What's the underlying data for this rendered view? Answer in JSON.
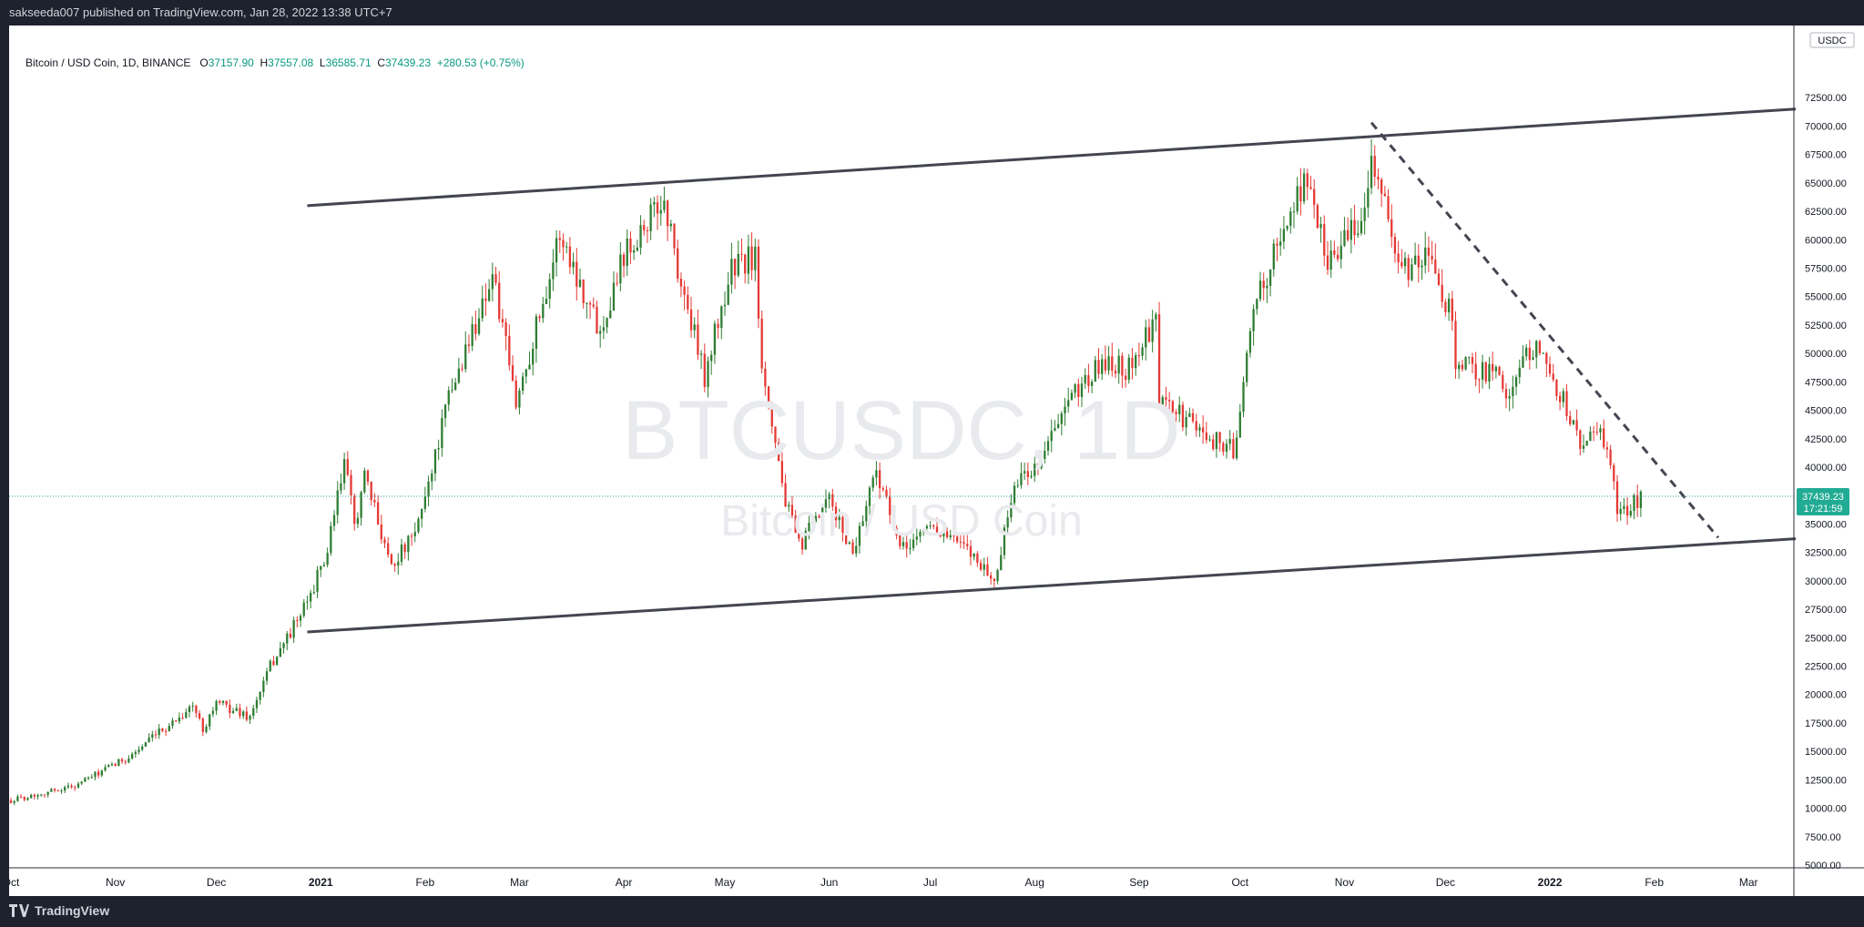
{
  "header": {
    "publisher": "sakseeda007 published on TradingView.com, Jan 28, 2022 13:38 UTC+7"
  },
  "footer": {
    "brand": "TradingView"
  },
  "legend": {
    "symbol": "Bitcoin / USD Coin, 1D, BINANCE",
    "open_label": "O",
    "open": "37157.90",
    "high_label": "H",
    "high": "37557.08",
    "low_label": "L",
    "low": "36585.71",
    "close_label": "C",
    "close": "37439.23",
    "change": "+280.53 (+0.75%)"
  },
  "watermark": {
    "ticker": "BTCUSDC, 1D",
    "name": "Bitcoin / USD Coin"
  },
  "price_scale": {
    "currency": "USDC",
    "last_price": "37439.23",
    "countdown": "17:21:59"
  },
  "colors": {
    "up": "#089981",
    "candle_up": "#2e7d32",
    "candle_down": "#e53935",
    "line": "#434651",
    "price_line": "#26a69a",
    "badge": "#22ab94"
  },
  "chart_data": {
    "type": "candlestick",
    "x_range": [
      "2020-10-01",
      "2022-03-15"
    ],
    "ylim": [
      5000,
      75000
    ],
    "y_ticks": [
      5000,
      7500,
      10000,
      12500,
      15000,
      17500,
      20000,
      22500,
      25000,
      27500,
      30000,
      32500,
      35000,
      37500,
      40000,
      42500,
      45000,
      47500,
      50000,
      52500,
      55000,
      57500,
      60000,
      62500,
      65000,
      67500,
      70000,
      72500
    ],
    "y_tick_labels": [
      "5000.00",
      "7500.00",
      "10000.00",
      "12500.00",
      "15000.00",
      "17500.00",
      "20000.00",
      "22500.00",
      "25000.00",
      "27500.00",
      "30000.00",
      "32500.00",
      "35000.00",
      "37500.00",
      "40000.00",
      "42500.00",
      "45000.00",
      "47500.00",
      "50000.00",
      "52500.00",
      "55000.00",
      "57500.00",
      "60000.00",
      "62500.00",
      "65000.00",
      "67500.00",
      "70000.00",
      "72500.00"
    ],
    "x_ticks": [
      {
        "label": "Oct",
        "date": "2020-10-01"
      },
      {
        "label": "Nov",
        "date": "2020-11-01"
      },
      {
        "label": "Dec",
        "date": "2020-12-01"
      },
      {
        "label": "2021",
        "date": "2021-01-01",
        "bold": true
      },
      {
        "label": "Feb",
        "date": "2021-02-01"
      },
      {
        "label": "Mar",
        "date": "2021-03-01"
      },
      {
        "label": "Apr",
        "date": "2021-04-01"
      },
      {
        "label": "May",
        "date": "2021-05-01"
      },
      {
        "label": "Jun",
        "date": "2021-06-01"
      },
      {
        "label": "Jul",
        "date": "2021-07-01"
      },
      {
        "label": "Aug",
        "date": "2021-08-01"
      },
      {
        "label": "Sep",
        "date": "2021-09-01"
      },
      {
        "label": "Oct",
        "date": "2021-10-01"
      },
      {
        "label": "Nov",
        "date": "2021-11-01"
      },
      {
        "label": "Dec",
        "date": "2021-12-01"
      },
      {
        "label": "2022",
        "date": "2022-01-01",
        "bold": true
      },
      {
        "label": "Feb",
        "date": "2022-02-01"
      },
      {
        "label": "Mar",
        "date": "2022-03-01"
      }
    ],
    "price_anchors": [
      [
        "2020-10-01",
        10700
      ],
      [
        "2020-10-20",
        12000
      ],
      [
        "2020-11-05",
        14500
      ],
      [
        "2020-11-24",
        19000
      ],
      [
        "2020-11-27",
        17000
      ],
      [
        "2020-12-01",
        19300
      ],
      [
        "2020-12-11",
        18000
      ],
      [
        "2020-12-17",
        22500
      ],
      [
        "2020-12-27",
        27500
      ],
      [
        "2021-01-03",
        32500
      ],
      [
        "2021-01-08",
        40500
      ],
      [
        "2021-01-11",
        35000
      ],
      [
        "2021-01-14",
        39000
      ],
      [
        "2021-01-22",
        31500
      ],
      [
        "2021-01-29",
        34000
      ],
      [
        "2021-02-08",
        46000
      ],
      [
        "2021-02-21",
        57000
      ],
      [
        "2021-02-28",
        45500
      ],
      [
        "2021-03-13",
        60500
      ],
      [
        "2021-03-25",
        52000
      ],
      [
        "2021-04-01",
        59000
      ],
      [
        "2021-04-13",
        63500
      ],
      [
        "2021-04-18",
        56000
      ],
      [
        "2021-04-25",
        48000
      ],
      [
        "2021-05-03",
        57500
      ],
      [
        "2021-05-10",
        58500
      ],
      [
        "2021-05-12",
        49500
      ],
      [
        "2021-05-19",
        37000
      ],
      [
        "2021-05-23",
        33000
      ],
      [
        "2021-06-01",
        37000
      ],
      [
        "2021-06-08",
        32500
      ],
      [
        "2021-06-15",
        40000
      ],
      [
        "2021-06-22",
        32500
      ],
      [
        "2021-07-01",
        35000
      ],
      [
        "2021-07-15",
        32000
      ],
      [
        "2021-07-20",
        29800
      ],
      [
        "2021-07-26",
        38500
      ],
      [
        "2021-08-01",
        40000
      ],
      [
        "2021-08-14",
        47000
      ],
      [
        "2021-08-23",
        49500
      ],
      [
        "2021-08-28",
        48500
      ],
      [
        "2021-09-06",
        52500
      ],
      [
        "2021-09-07",
        46000
      ],
      [
        "2021-09-20",
        43000
      ],
      [
        "2021-09-29",
        41500
      ],
      [
        "2021-10-06",
        55000
      ],
      [
        "2021-10-15",
        61500
      ],
      [
        "2021-10-20",
        65500
      ],
      [
        "2021-10-27",
        58500
      ],
      [
        "2021-11-05",
        61000
      ],
      [
        "2021-11-09",
        67500
      ],
      [
        "2021-11-18",
        57000
      ],
      [
        "2021-11-25",
        58500
      ],
      [
        "2021-12-03",
        53500
      ],
      [
        "2021-12-04",
        49000
      ],
      [
        "2021-12-14",
        48500
      ],
      [
        "2021-12-20",
        46700
      ],
      [
        "2021-12-27",
        50800
      ],
      [
        "2022-01-05",
        46000
      ],
      [
        "2022-01-10",
        41800
      ],
      [
        "2022-01-13",
        43000
      ],
      [
        "2022-01-17",
        42500
      ],
      [
        "2022-01-21",
        36500
      ],
      [
        "2022-01-24",
        36300
      ],
      [
        "2022-01-28",
        37439
      ]
    ],
    "trendlines": [
      {
        "name": "upper-channel",
        "style": "solid",
        "from": [
          "2020-12-28",
          63000
        ],
        "to": [
          "2022-03-15",
          71500
        ]
      },
      {
        "name": "lower-channel",
        "style": "solid",
        "from": [
          "2020-12-28",
          25500
        ],
        "to": [
          "2022-03-15",
          33700
        ]
      },
      {
        "name": "descending-resistance",
        "style": "dashed",
        "from": [
          "2021-11-09",
          70300
        ],
        "to": [
          "2022-02-20",
          33800
        ]
      }
    ]
  }
}
